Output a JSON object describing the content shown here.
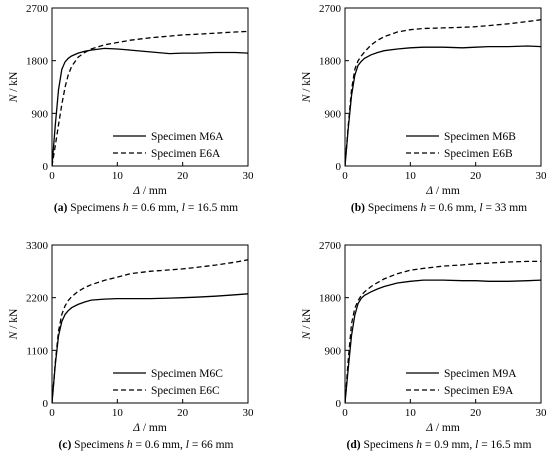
{
  "chart_data": [
    {
      "type": "line",
      "panel": "a",
      "xlabel": "Δ / mm",
      "ylabel": "N / kN",
      "xlim": [
        0,
        30
      ],
      "ylim": [
        0,
        2700
      ],
      "xticks": [
        0,
        10,
        20,
        30
      ],
      "yticks": [
        0,
        900,
        1800,
        2700
      ],
      "legend_position": "bottom-right",
      "caption": {
        "letter": "(a)",
        "text": "Specimens h = 0.6 mm, l = 16.5 mm"
      },
      "series": [
        {
          "name": "Specimen M6A",
          "style": "solid",
          "x": [
            0,
            0.5,
            1,
            1.5,
            2,
            2.5,
            3,
            4,
            5,
            6,
            8,
            10,
            12,
            15,
            18,
            20,
            22,
            25,
            28,
            30
          ],
          "y": [
            0,
            700,
            1300,
            1650,
            1780,
            1840,
            1880,
            1930,
            1960,
            1980,
            2010,
            2000,
            1980,
            1950,
            1920,
            1930,
            1930,
            1940,
            1940,
            1930
          ]
        },
        {
          "name": "Specimen E6A",
          "style": "dashed",
          "x": [
            0,
            0.5,
            1,
            1.5,
            2,
            2.5,
            3,
            4,
            5,
            6,
            8,
            10,
            12,
            15,
            18,
            20,
            22,
            25,
            28,
            30
          ],
          "y": [
            0,
            350,
            700,
            1050,
            1350,
            1560,
            1700,
            1860,
            1940,
            2000,
            2070,
            2110,
            2150,
            2190,
            2220,
            2240,
            2250,
            2270,
            2290,
            2300
          ]
        }
      ]
    },
    {
      "type": "line",
      "panel": "b",
      "xlabel": "Δ / mm",
      "ylabel": "N / kN",
      "xlim": [
        0,
        30
      ],
      "ylim": [
        0,
        2700
      ],
      "xticks": [
        0,
        10,
        20,
        30
      ],
      "yticks": [
        0,
        900,
        1800,
        2700
      ],
      "legend_position": "bottom-right",
      "caption": {
        "letter": "(b)",
        "text": "Specimens h = 0.6 mm, l = 33 mm"
      },
      "series": [
        {
          "name": "Specimen M6B",
          "style": "solid",
          "x": [
            0,
            0.5,
            1,
            1.5,
            2,
            2.5,
            3,
            4,
            5,
            6,
            8,
            10,
            12,
            15,
            18,
            20,
            22,
            25,
            28,
            30
          ],
          "y": [
            0,
            650,
            1200,
            1550,
            1720,
            1790,
            1840,
            1900,
            1940,
            1970,
            2000,
            2020,
            2030,
            2030,
            2020,
            2030,
            2040,
            2040,
            2050,
            2040
          ]
        },
        {
          "name": "Specimen E6B",
          "style": "dashed",
          "x": [
            0,
            0.5,
            1,
            1.5,
            2,
            2.5,
            3,
            4,
            5,
            6,
            8,
            10,
            12,
            15,
            18,
            20,
            22,
            25,
            28,
            30
          ],
          "y": [
            0,
            700,
            1300,
            1650,
            1800,
            1880,
            1950,
            2070,
            2150,
            2210,
            2290,
            2330,
            2350,
            2360,
            2370,
            2380,
            2400,
            2430,
            2470,
            2500
          ]
        }
      ]
    },
    {
      "type": "line",
      "panel": "c",
      "xlabel": "Δ / mm",
      "ylabel": "N / kN",
      "xlim": [
        0,
        30
      ],
      "ylim": [
        0,
        3300
      ],
      "xticks": [
        0,
        10,
        20,
        30
      ],
      "yticks": [
        0,
        1100,
        2200,
        3300
      ],
      "legend_position": "bottom-right",
      "caption": {
        "letter": "(c)",
        "text": "Specimens h = 0.6 mm, l = 66 mm"
      },
      "series": [
        {
          "name": "Specimen M6C",
          "style": "solid",
          "x": [
            0,
            0.5,
            1,
            1.5,
            2,
            2.5,
            3,
            4,
            5,
            6,
            8,
            10,
            12,
            15,
            18,
            20,
            22,
            25,
            28,
            30
          ],
          "y": [
            0,
            800,
            1400,
            1700,
            1850,
            1930,
            1990,
            2060,
            2110,
            2150,
            2170,
            2180,
            2180,
            2180,
            2190,
            2200,
            2210,
            2230,
            2260,
            2280
          ]
        },
        {
          "name": "Specimen E6C",
          "style": "dashed",
          "x": [
            0,
            0.5,
            1,
            1.5,
            2,
            2.5,
            3,
            4,
            5,
            6,
            8,
            10,
            12,
            15,
            18,
            20,
            22,
            25,
            28,
            30
          ],
          "y": [
            0,
            850,
            1500,
            1850,
            2030,
            2140,
            2220,
            2330,
            2410,
            2470,
            2560,
            2630,
            2700,
            2750,
            2780,
            2800,
            2830,
            2880,
            2940,
            2990
          ]
        }
      ]
    },
    {
      "type": "line",
      "panel": "d",
      "xlabel": "Δ / mm",
      "ylabel": "N / kN",
      "xlim": [
        0,
        30
      ],
      "ylim": [
        0,
        2700
      ],
      "xticks": [
        0,
        10,
        20,
        30
      ],
      "yticks": [
        0,
        900,
        1800,
        2700
      ],
      "legend_position": "bottom-right",
      "caption": {
        "letter": "(d)",
        "text": "Specimens h = 0.9 mm, l = 16.5 mm"
      },
      "series": [
        {
          "name": "Specimen M9A",
          "style": "solid",
          "x": [
            0,
            0.5,
            1,
            1.5,
            2,
            2.5,
            3,
            4,
            5,
            6,
            8,
            10,
            12,
            15,
            18,
            20,
            22,
            25,
            28,
            30
          ],
          "y": [
            0,
            600,
            1150,
            1500,
            1700,
            1790,
            1840,
            1900,
            1950,
            1990,
            2050,
            2080,
            2100,
            2100,
            2090,
            2090,
            2080,
            2080,
            2090,
            2100
          ]
        },
        {
          "name": "Specimen E9A",
          "style": "dashed",
          "x": [
            0,
            0.5,
            1,
            1.5,
            2,
            2.5,
            3,
            4,
            5,
            6,
            8,
            10,
            12,
            15,
            18,
            20,
            22,
            25,
            28,
            30
          ],
          "y": [
            0,
            750,
            1350,
            1620,
            1750,
            1840,
            1900,
            1990,
            2060,
            2120,
            2210,
            2270,
            2300,
            2340,
            2360,
            2380,
            2390,
            2410,
            2420,
            2420
          ]
        }
      ]
    }
  ]
}
